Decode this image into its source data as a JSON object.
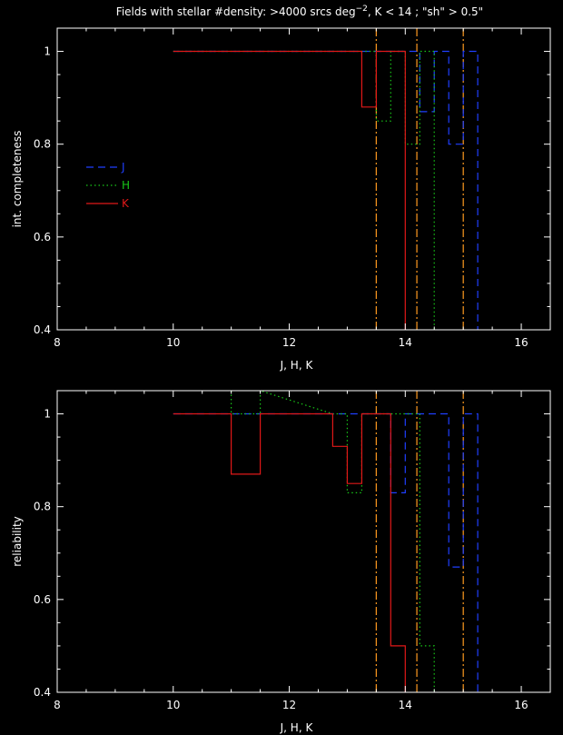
{
  "figure_title": {
    "prefix": "Fields with stellar #density: >4000 srcs deg",
    "superscript": "−2",
    "suffix": ", K < 14 ; \"sh\" > 0.5\""
  },
  "colors": {
    "J": "#1f3fff",
    "H": "#18c818",
    "K": "#e01818",
    "vline": "#ff9a20",
    "axes": "#ffffff"
  },
  "chart_data": [
    {
      "type": "line",
      "step": true,
      "ylabel": "int. completeness",
      "xlabel": "J, H, K",
      "xlim": [
        8,
        16.5
      ],
      "ylim": [
        0.4,
        1.05
      ],
      "xticks": [
        8,
        10,
        12,
        14,
        16
      ],
      "yticks": [
        0.4,
        0.6,
        0.8,
        1
      ],
      "ytick_labels": [
        "0.4",
        "0.6",
        "0.8",
        "1"
      ],
      "legend_position": "left",
      "vlines": [
        13.5,
        14.2,
        15.0
      ],
      "series": [
        {
          "name": "J",
          "style": "dashed",
          "x": [
            10,
            14.0,
            14.0,
            14.25,
            14.25,
            14.5,
            14.5,
            14.75,
            14.75,
            15.0,
            15.0,
            15.25,
            15.25
          ],
          "y": [
            1.0,
            1.0,
            1.0,
            1.0,
            0.87,
            0.87,
            1.0,
            1.0,
            0.8,
            0.8,
            1.0,
            1.0,
            0.4
          ]
        },
        {
          "name": "H",
          "style": "dotted",
          "x": [
            10,
            13.5,
            13.5,
            13.75,
            13.75,
            14.0,
            14.0,
            14.25,
            14.25,
            14.5,
            14.5
          ],
          "y": [
            1.0,
            1.0,
            0.85,
            0.85,
            1.0,
            1.0,
            0.8,
            0.8,
            1.0,
            1.0,
            0.4
          ]
        },
        {
          "name": "K",
          "style": "solid",
          "x": [
            10,
            13.25,
            13.25,
            13.5,
            13.5,
            14.0,
            14.0
          ],
          "y": [
            1.0,
            1.0,
            0.88,
            0.88,
            1.0,
            1.0,
            0.4
          ]
        }
      ]
    },
    {
      "type": "line",
      "step": true,
      "ylabel": "reliability",
      "xlabel": "J, H, K",
      "xlim": [
        8,
        16.5
      ],
      "ylim": [
        0.4,
        1.05
      ],
      "xticks": [
        8,
        10,
        12,
        14,
        16
      ],
      "yticks": [
        0.4,
        0.6,
        0.8,
        1
      ],
      "ytick_labels": [
        "0.4",
        "0.6",
        "0.8",
        "1"
      ],
      "vlines": [
        13.5,
        14.2,
        15.0
      ],
      "series": [
        {
          "name": "J",
          "style": "dashed",
          "x": [
            10,
            11.0,
            11.0,
            11.5,
            11.5,
            13.75,
            13.75,
            14.0,
            14.0,
            14.5,
            14.5,
            14.75,
            14.75,
            15.0,
            15.0,
            15.25,
            15.25
          ],
          "y": [
            1.0,
            1.0,
            1.0,
            1.0,
            1.0,
            1.0,
            0.83,
            0.83,
            1.0,
            1.0,
            1.0,
            1.0,
            0.67,
            0.67,
            1.0,
            1.0,
            0.4
          ]
        },
        {
          "name": "H",
          "style": "dotted",
          "x": [
            11.0,
            11.0,
            11.5,
            11.5,
            12.75,
            12.75,
            13.0,
            13.0,
            13.25,
            13.25,
            14.25,
            14.25,
            14.5,
            14.5
          ],
          "y": [
            1.05,
            1.0,
            1.0,
            1.05,
            1.0,
            1.0,
            1.0,
            0.83,
            0.83,
            1.0,
            1.0,
            0.5,
            0.5,
            0.4
          ]
        },
        {
          "name": "K",
          "style": "solid",
          "x": [
            10,
            11.0,
            11.0,
            11.5,
            11.5,
            12.75,
            12.75,
            13.0,
            13.0,
            13.25,
            13.25,
            13.75,
            13.75,
            14.0,
            14.0
          ],
          "y": [
            1.0,
            1.0,
            0.87,
            0.87,
            1.0,
            1.0,
            0.93,
            0.93,
            0.85,
            0.85,
            1.0,
            1.0,
            0.5,
            0.5,
            0.4
          ]
        }
      ]
    }
  ]
}
